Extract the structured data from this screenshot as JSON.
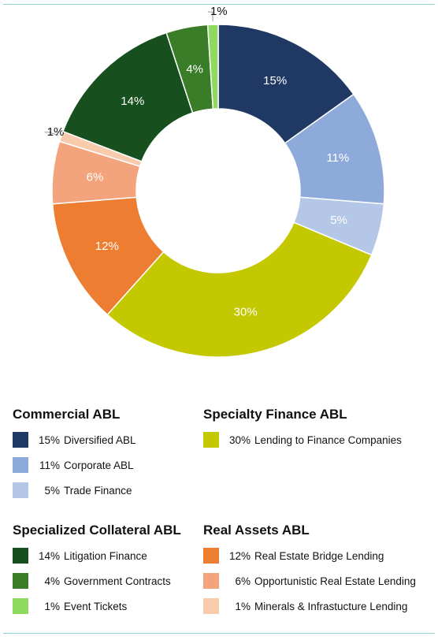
{
  "chart_data": {
    "type": "pie",
    "donut": true,
    "slices": [
      {
        "label": "Diversified ABL",
        "value": 15,
        "display": "15%",
        "color": "#1f3864",
        "group": "Commercial ABL"
      },
      {
        "label": "Corporate ABL",
        "value": 11,
        "display": "11%",
        "color": "#8eaadb",
        "group": "Commercial ABL"
      },
      {
        "label": "Trade Finance",
        "value": 5,
        "display": "5%",
        "color": "#b4c7e7",
        "group": "Commercial ABL"
      },
      {
        "label": "Lending to Finance Companies",
        "value": 30,
        "display": "30%",
        "color": "#c4c800",
        "group": "Specialty Finance ABL"
      },
      {
        "label": "Real Estate Bridge Lending",
        "value": 12,
        "display": "12%",
        "color": "#ed7d31",
        "group": "Real Assets ABL"
      },
      {
        "label": "Opportunistic Real Estate Lending",
        "value": 6,
        "display": "6%",
        "color": "#f4a47c",
        "group": "Real Assets ABL"
      },
      {
        "label": "Minerals & Infrastucture Lending",
        "value": 1,
        "display": "1%",
        "color": "#f8cbad",
        "group": "Real Assets ABL"
      },
      {
        "label": "Litigation Finance",
        "value": 14,
        "display": "14%",
        "color": "#174f1e",
        "group": "Specialized Collateral ABL"
      },
      {
        "label": "Government Contracts",
        "value": 4,
        "display": "4%",
        "color": "#3a7d28",
        "group": "Specialized Collateral ABL"
      },
      {
        "label": "Event Tickets",
        "value": 1,
        "display": "1%",
        "color": "#8ed960",
        "group": "Specialized Collateral ABL"
      }
    ]
  },
  "legend": {
    "commercial": {
      "title": "Commercial ABL",
      "items": [
        {
          "pct": "15%",
          "label": "Diversified ABL",
          "color": "#1f3864"
        },
        {
          "pct": "11%",
          "label": "Corporate ABL",
          "color": "#8eaadb"
        },
        {
          "pct": "5%",
          "label": "Trade Finance",
          "color": "#b4c7e7"
        }
      ]
    },
    "specialty": {
      "title": "Specialty Finance ABL",
      "items": [
        {
          "pct": "30%",
          "label": "Lending to Finance Companies",
          "color": "#c4c800"
        }
      ]
    },
    "collateral": {
      "title": "Specialized Collateral ABL",
      "items": [
        {
          "pct": "14%",
          "label": "Litigation Finance",
          "color": "#174f1e"
        },
        {
          "pct": "4%",
          "label": "Government Contracts",
          "color": "#3a7d28"
        },
        {
          "pct": "1%",
          "label": "Event Tickets",
          "color": "#8ed960"
        }
      ]
    },
    "real_assets": {
      "title": "Real Assets ABL",
      "items": [
        {
          "pct": "12%",
          "label": "Real Estate Bridge Lending",
          "color": "#ed7d31"
        },
        {
          "pct": "6%",
          "label": "Opportunistic Real Estate Lending",
          "color": "#f4a47c"
        },
        {
          "pct": "1%",
          "label": "Minerals & Infrastucture Lending",
          "color": "#f8cbad"
        }
      ]
    }
  }
}
